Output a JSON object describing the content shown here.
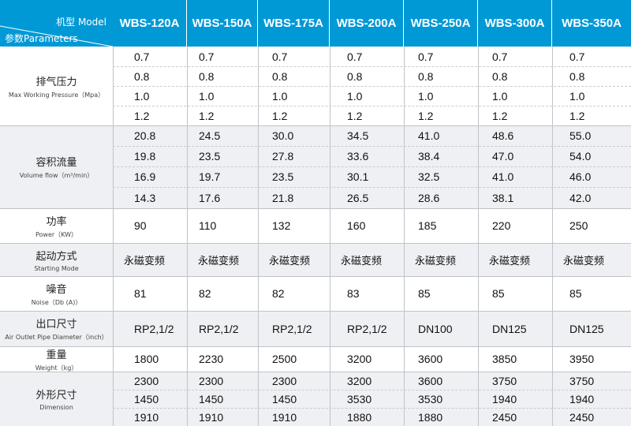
{
  "header": {
    "model_label": "机型 Model",
    "param_label": "参数Parameters",
    "models": [
      "WBS-120A",
      "WBS-150A",
      "WBS-175A",
      "WBS-200A",
      "WBS-250A",
      "WBS-300A",
      "WBS-350A"
    ]
  },
  "groups": [
    {
      "label_cn": "排气压力",
      "label_en": "Max Working Pressure（Mpa）",
      "rows": [
        [
          "0.7",
          "0.7",
          "0.7",
          "0.7",
          "0.7",
          "0.7",
          "0.7"
        ],
        [
          "0.8",
          "0.8",
          "0.8",
          "0.8",
          "0.8",
          "0.8",
          "0.8"
        ],
        [
          "1.0",
          "1.0",
          "1.0",
          "1.0",
          "1.0",
          "1.0",
          "1.0"
        ],
        [
          "1.2",
          "1.2",
          "1.2",
          "1.2",
          "1.2",
          "1.2",
          "1.2"
        ]
      ]
    },
    {
      "label_cn": "容积流量",
      "label_en": "Volume flow（m³/min）",
      "rows": [
        [
          "20.8",
          "24.5",
          "30.0",
          "34.5",
          "41.0",
          "48.6",
          "55.0"
        ],
        [
          "19.8",
          "23.5",
          "27.8",
          "33.6",
          "38.4",
          "47.0",
          "54.0"
        ],
        [
          "16.9",
          "19.7",
          "23.5",
          "30.1",
          "32.5",
          "41.0",
          "46.0"
        ],
        [
          "14.3",
          "17.6",
          "21.8",
          "26.5",
          "28.6",
          "38.1",
          "42.0"
        ]
      ]
    },
    {
      "label_cn": "功率",
      "label_en": "Power（KW）",
      "rows": [
        [
          "90",
          "110",
          "132",
          "160",
          "185",
          "220",
          "250"
        ]
      ]
    },
    {
      "label_cn": "起动方式",
      "label_en": "Starting Mode",
      "rows": [
        [
          "永磁变频",
          "永磁变频",
          "永磁变频",
          "永磁变频",
          "永磁变频",
          "永磁变频",
          "永磁变频"
        ]
      ]
    },
    {
      "label_cn": "噪音",
      "label_en": "Noise（Db (A)）",
      "rows": [
        [
          "81",
          "82",
          "82",
          "83",
          "85",
          "85",
          "85"
        ]
      ]
    },
    {
      "label_cn": "出口尺寸",
      "label_en": "Air Outlet Pipe Diameter（inch）",
      "rows": [
        [
          "RP2,1/2",
          "RP2,1/2",
          "RP2,1/2",
          "RP2,1/2",
          "DN100",
          "DN125",
          "DN125"
        ]
      ]
    },
    {
      "label_cn": "重量",
      "label_en": "Weight（kg）",
      "rows": [
        [
          "1800",
          "2230",
          "2500",
          "3200",
          "3600",
          "3850",
          "3950"
        ]
      ]
    },
    {
      "label_cn": "外形尺寸",
      "label_en": "Dimension",
      "rows": [
        [
          "2300",
          "2300",
          "2300",
          "3200",
          "3600",
          "3750",
          "3750"
        ],
        [
          "1450",
          "1450",
          "1450",
          "3530",
          "3530",
          "1940",
          "1940"
        ],
        [
          "1910",
          "1910",
          "1910",
          "1880",
          "1880",
          "2450",
          "2450"
        ]
      ]
    }
  ],
  "colors": {
    "header_bg": "#0099d6",
    "shaded_bg": "#eef0f3",
    "grid": "#bfc3c8"
  }
}
